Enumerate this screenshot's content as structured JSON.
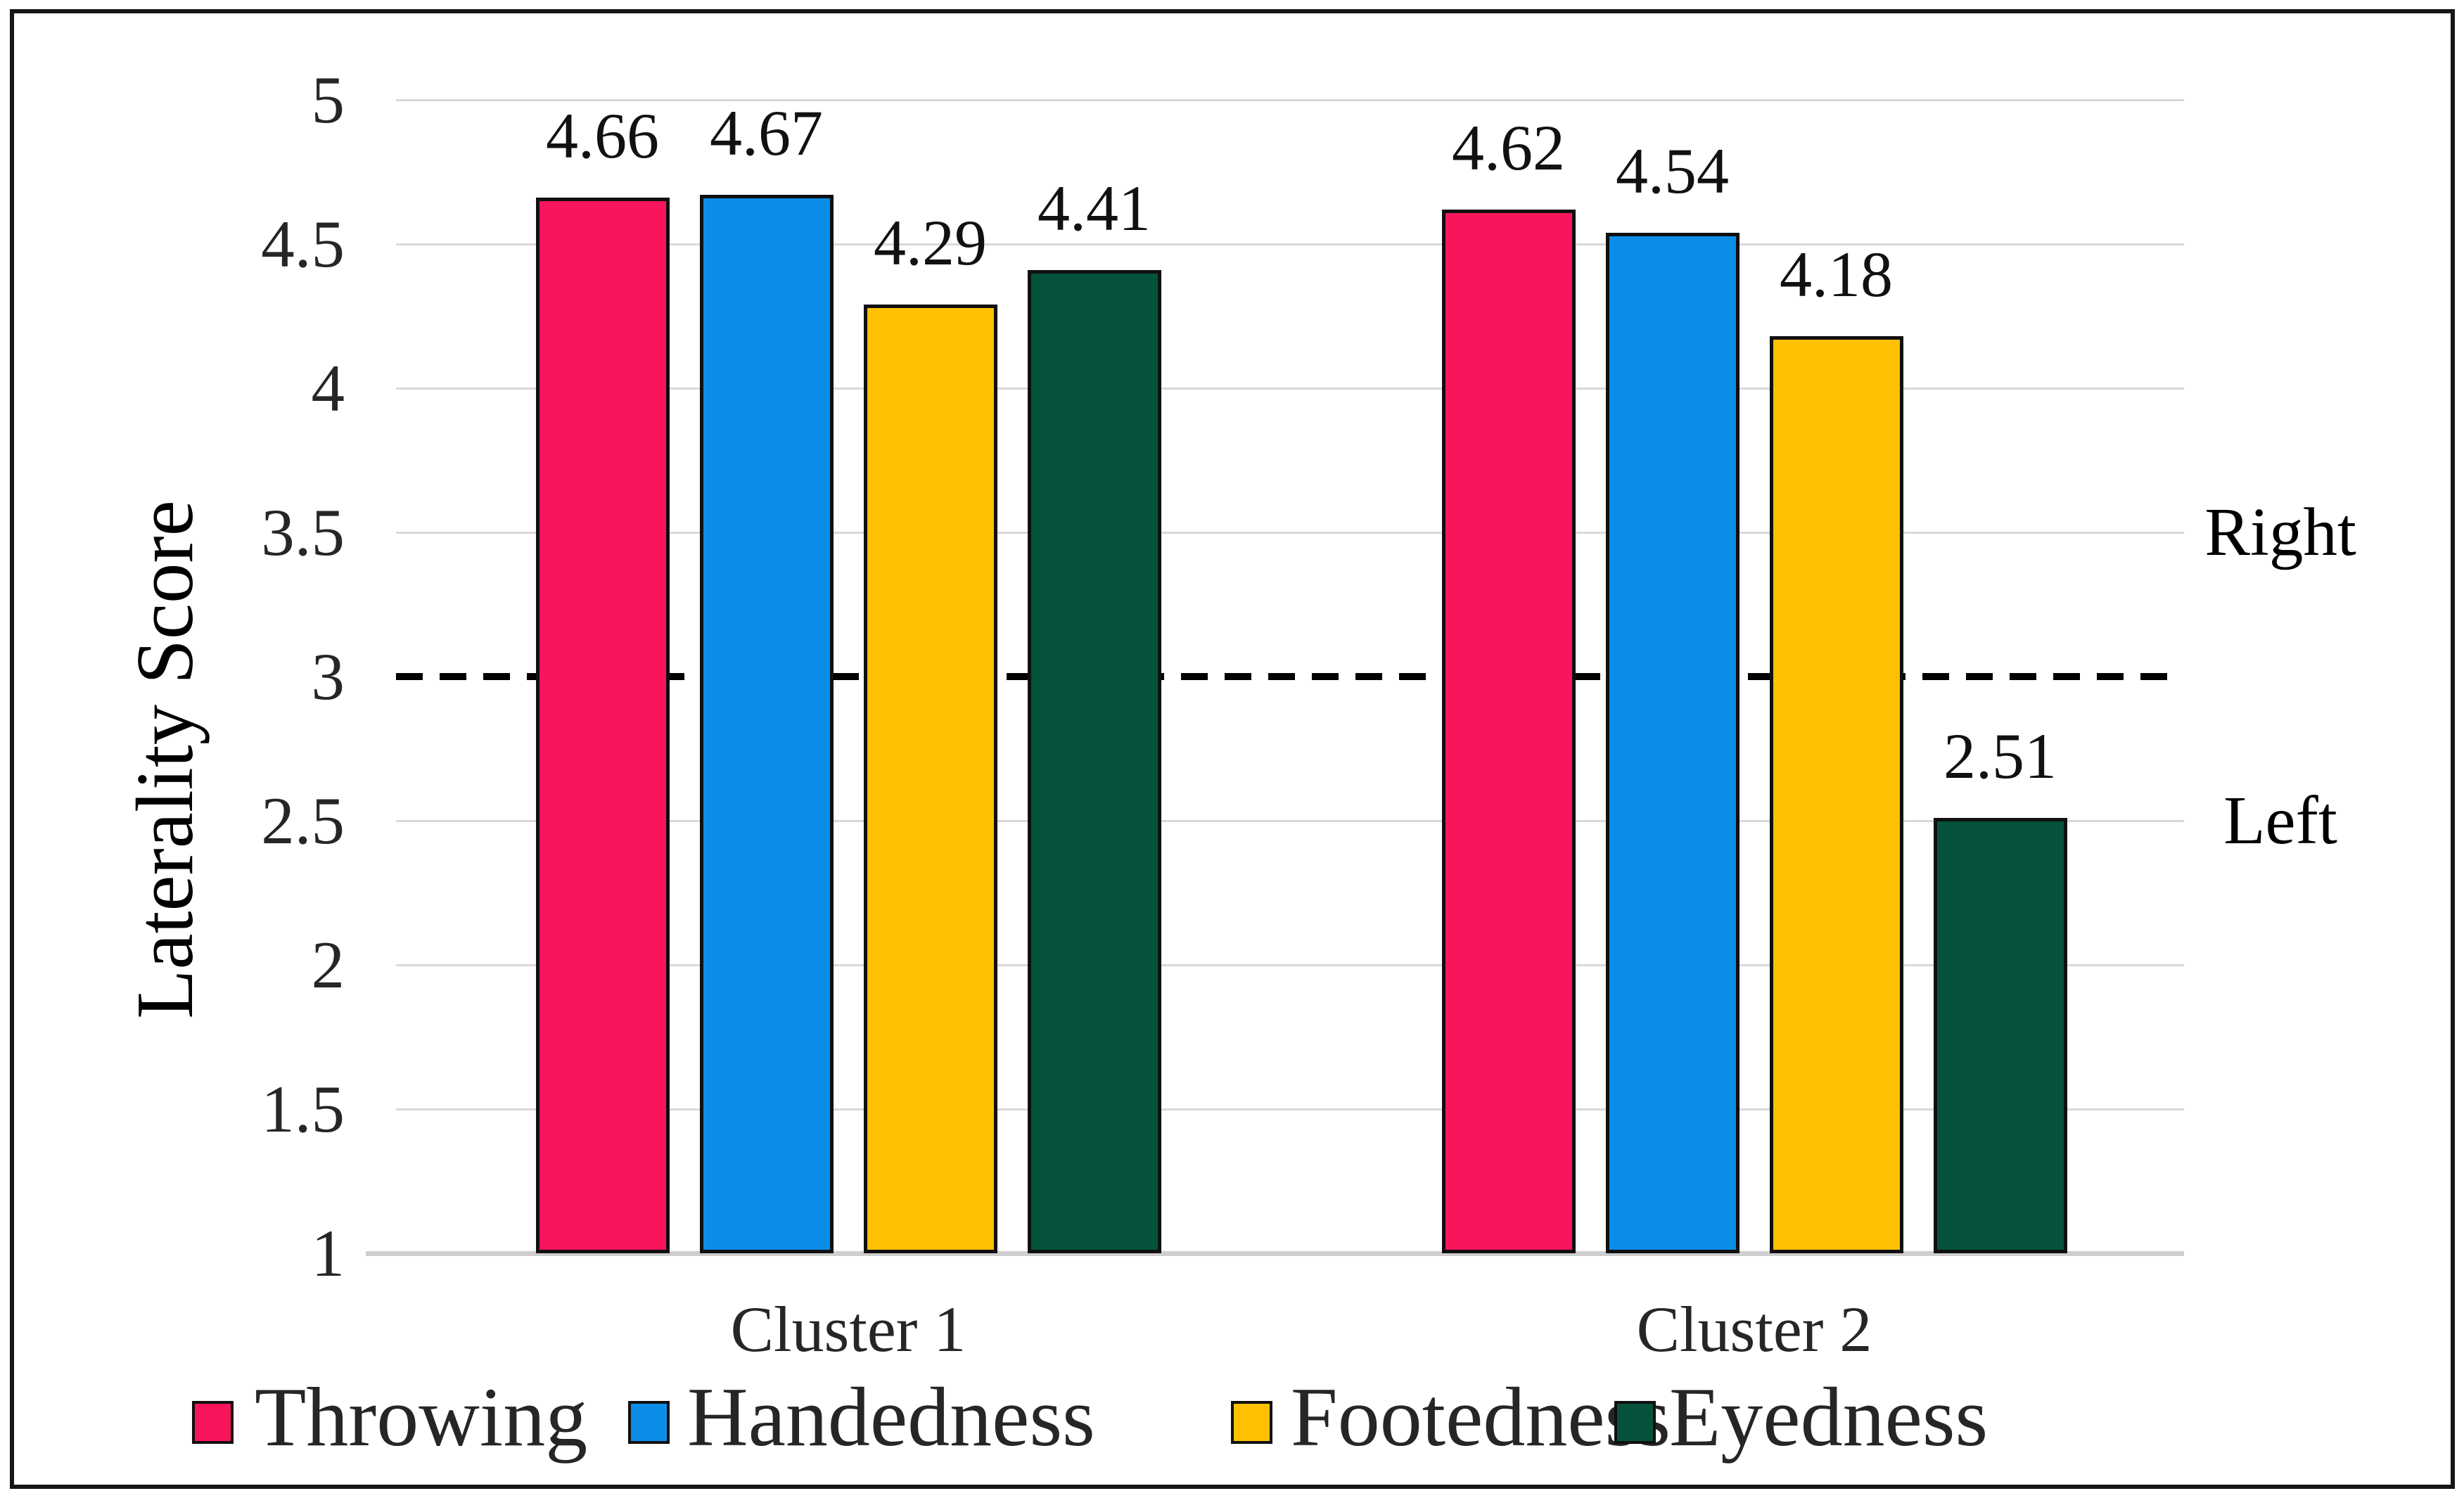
{
  "chart_data": {
    "type": "bar",
    "title": "",
    "xlabel": "",
    "ylabel": "Laterality Score",
    "categories": [
      "Cluster 1",
      "Cluster 2"
    ],
    "series": [
      {
        "name": "Throwing",
        "color": "#f8155b",
        "values": [
          4.66,
          4.62
        ]
      },
      {
        "name": "Handedness",
        "color": "#0b8de8",
        "values": [
          4.67,
          4.54
        ]
      },
      {
        "name": "Footedness",
        "color": "#ffc002",
        "values": [
          4.29,
          4.18
        ]
      },
      {
        "name": "Eyedness",
        "color": "#05523c",
        "values": [
          4.41,
          2.51
        ]
      }
    ],
    "ylim": [
      1,
      5
    ],
    "yticks": [
      "5",
      "4.5",
      "4",
      "3.5",
      "3",
      "2.5",
      "2",
      "1.5",
      "1"
    ],
    "grid": true,
    "gridline_color": "#d9d9d9",
    "data_labels": true,
    "legend_position": "bottom",
    "reference_line": {
      "value": 3,
      "style": "dashed",
      "color": "#000000",
      "label_above": "Right",
      "label_below": "Left"
    }
  }
}
